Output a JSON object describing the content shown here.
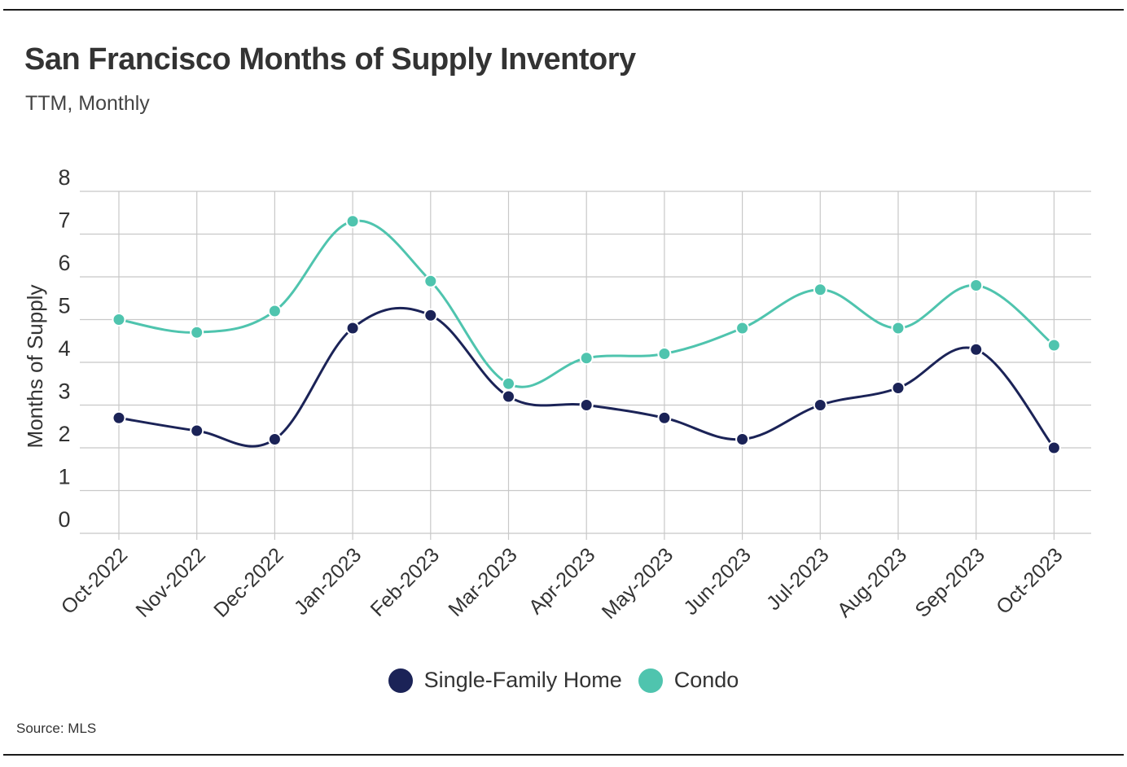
{
  "header": {
    "title": "San Francisco Months of Supply Inventory",
    "subtitle": "TTM, Monthly"
  },
  "footer": {
    "source": "Source:  MLS"
  },
  "colors": {
    "single_family": "#1b2357",
    "condo": "#4fc4ae",
    "grid": "#c8c8c8",
    "text": "#333333"
  },
  "chart_data": {
    "type": "line",
    "title": "San Francisco Months of Supply Inventory",
    "subtitle": "TTM, Monthly",
    "xlabel": "",
    "ylabel": "Months of Supply",
    "ylim": [
      0,
      8
    ],
    "yticks": [
      "0",
      "1",
      "2",
      "3",
      "4",
      "5",
      "6",
      "7",
      "8"
    ],
    "grid": true,
    "legend_position": "bottom",
    "categories": [
      "Oct-2022",
      "Nov-2022",
      "Dec-2022",
      "Jan-2023",
      "Feb-2023",
      "Mar-2023",
      "Apr-2023",
      "May-2023",
      "Jun-2023",
      "Jul-2023",
      "Aug-2023",
      "Sep-2023",
      "Oct-2023"
    ],
    "series": [
      {
        "name": "Single-Family Home",
        "values": [
          2.7,
          2.4,
          2.2,
          4.8,
          5.1,
          3.2,
          3.0,
          2.7,
          2.2,
          3.0,
          3.4,
          4.3,
          2.0
        ]
      },
      {
        "name": "Condo",
        "values": [
          5.0,
          4.7,
          5.2,
          7.3,
          5.9,
          3.5,
          4.1,
          4.2,
          4.8,
          5.7,
          4.8,
          5.8,
          4.4
        ]
      }
    ]
  }
}
